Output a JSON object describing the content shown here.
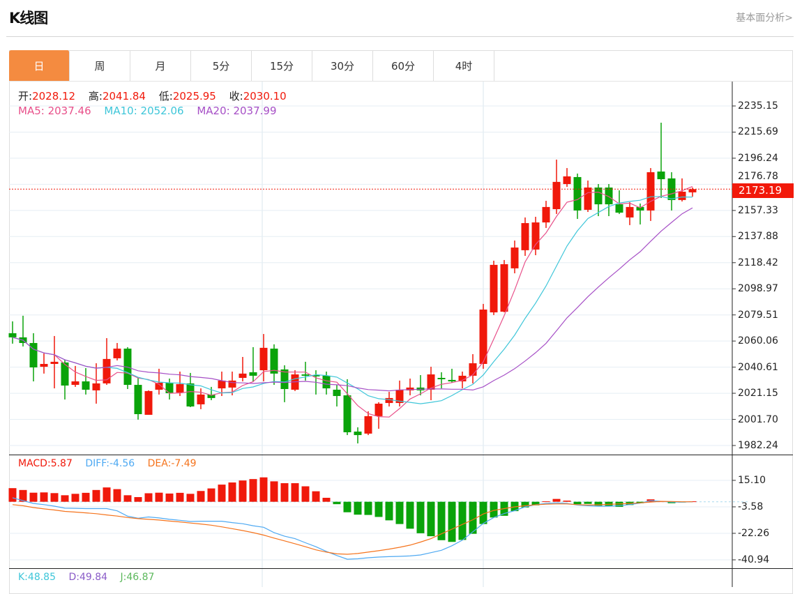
{
  "header": {
    "title": "K线图",
    "fundamental_link": "基本面分析>"
  },
  "tabs": [
    {
      "label": "日",
      "active": true
    },
    {
      "label": "周"
    },
    {
      "label": "月"
    },
    {
      "label": "5分"
    },
    {
      "label": "15分"
    },
    {
      "label": "30分"
    },
    {
      "label": "60分"
    },
    {
      "label": "4时"
    }
  ],
  "info": {
    "open_label": "开:",
    "open": "2028.12",
    "high_label": "高:",
    "high": "2041.84",
    "low_label": "低:",
    "low": "2025.95",
    "close_label": "收:",
    "close": "2030.10",
    "ma5_label": "MA5:",
    "ma5": "2037.46",
    "ma10_label": "MA10:",
    "ma10": "2052.06",
    "ma20_label": "MA20:",
    "ma20": "2037.99"
  },
  "macd_info": {
    "macd_label": "MACD:",
    "macd": "5.87",
    "diff_label": "DIFF:",
    "diff": "-4.56",
    "dea_label": "DEA:",
    "dea": "-7.49"
  },
  "kdj_info": {
    "k_label": "K:",
    "k": "48.85",
    "d_label": "D:",
    "d": "49.84",
    "j_label": "J:",
    "j": "46.87"
  },
  "colors": {
    "up": "#f0190b",
    "down": "#0aa30a",
    "ma5": "#e8508a",
    "ma10": "#3ec6d9",
    "ma20": "#a64fc6",
    "diff": "#4ea9f2",
    "dea": "#f5731c",
    "active_tab": "#f48b40",
    "k": "#3ec6d9",
    "d": "#8a5cc8",
    "j": "#5cb85c"
  },
  "chart_data": [
    {
      "type": "candlestick",
      "price_ticks": [
        "2235.15",
        "2215.69",
        "2196.24",
        "2176.78",
        "2157.33",
        "2137.88",
        "2118.42",
        "2098.97",
        "2079.51",
        "2060.06",
        "2040.61",
        "2021.15",
        "2001.70",
        "1982.24"
      ],
      "last_price": "2173.19",
      "ohlc_fields": [
        "open",
        "high",
        "low",
        "close"
      ],
      "ohlc": [
        [
          2065.9,
          2074.7,
          2058.1,
          2062.8
        ],
        [
          2062.8,
          2078.9,
          2056.0,
          2058.6
        ],
        [
          2058.6,
          2065.9,
          2030.0,
          2040.4
        ],
        [
          2040.9,
          2050.8,
          2035.8,
          2043.0
        ],
        [
          2043.0,
          2063.8,
          2024.8,
          2044.6
        ],
        [
          2044.1,
          2046.1,
          2016.5,
          2026.9
        ],
        [
          2027.4,
          2041.5,
          2025.9,
          2030.0
        ],
        [
          2030.0,
          2039.9,
          2020.2,
          2023.8
        ],
        [
          2023.3,
          2043.5,
          2013.4,
          2028.5
        ],
        [
          2028.5,
          2062.2,
          2027.4,
          2046.7
        ],
        [
          2047.2,
          2058.6,
          2045.6,
          2054.4
        ],
        [
          2054.4,
          2055.5,
          2024.3,
          2027.4
        ],
        [
          2027.4,
          2032.6,
          2001.5,
          2005.6
        ],
        [
          2005.1,
          2023.3,
          2005.1,
          2022.8
        ],
        [
          2023.8,
          2039.4,
          2020.2,
          2029.0
        ],
        [
          2029.0,
          2032.1,
          2016.5,
          2021.2
        ],
        [
          2021.7,
          2037.3,
          2019.1,
          2028.0
        ],
        [
          2028.5,
          2036.3,
          2010.8,
          2011.3
        ],
        [
          2012.9,
          2024.8,
          2009.3,
          2020.2
        ],
        [
          2020.2,
          2025.9,
          2016.0,
          2017.6
        ],
        [
          2024.8,
          2037.3,
          2019.1,
          2030.6
        ],
        [
          2025.4,
          2037.3,
          2019.6,
          2030.6
        ],
        [
          2032.6,
          2048.2,
          2030.0,
          2035.8
        ],
        [
          2036.8,
          2055.5,
          2030.0,
          2034.2
        ],
        [
          2038.3,
          2065.3,
          2030.0,
          2055.0
        ],
        [
          2054.4,
          2057.6,
          2027.4,
          2035.8
        ],
        [
          2038.9,
          2042.0,
          2014.5,
          2024.3
        ],
        [
          2023.8,
          2038.3,
          2022.8,
          2035.2
        ],
        [
          2035.2,
          2044.6,
          2030.6,
          2034.2
        ],
        [
          2034.7,
          2038.3,
          2020.2,
          2033.7
        ],
        [
          2034.2,
          2037.3,
          2020.2,
          2024.8
        ],
        [
          2023.8,
          2027.4,
          2011.3,
          2019.1
        ],
        [
          2019.6,
          2031.6,
          1990.0,
          1992.1
        ],
        [
          1992.6,
          1995.8,
          1983.8,
          1990.0
        ],
        [
          1991.1,
          2007.7,
          1990.0,
          2004.1
        ],
        [
          2004.1,
          2014.5,
          1994.7,
          2013.4
        ],
        [
          2013.9,
          2022.2,
          2011.3,
          2017.6
        ],
        [
          2013.9,
          2030.6,
          2011.3,
          2023.8
        ],
        [
          2023.3,
          2032.1,
          2019.6,
          2025.4
        ],
        [
          2025.4,
          2034.7,
          2019.6,
          2023.3
        ],
        [
          2023.8,
          2040.9,
          2016.0,
          2035.2
        ],
        [
          2032.6,
          2036.8,
          2024.8,
          2031.6
        ],
        [
          2031.1,
          2039.4,
          2029.0,
          2030.0
        ],
        [
          2030.0,
          2037.3,
          2024.8,
          2034.2
        ],
        [
          2034.2,
          2050.3,
          2028.5,
          2043.5
        ],
        [
          2043.0,
          2087.7,
          2039.4,
          2083.5
        ],
        [
          2081.4,
          2119.9,
          2079.4,
          2116.8
        ],
        [
          2081.9,
          2120.4,
          2081.4,
          2117.3
        ],
        [
          2114.2,
          2134.9,
          2110.5,
          2129.7
        ],
        [
          2127.7,
          2152.1,
          2123.5,
          2147.9
        ],
        [
          2128.2,
          2152.6,
          2124.0,
          2148.4
        ],
        [
          2148.4,
          2164.5,
          2144.3,
          2159.9
        ],
        [
          2158.3,
          2195.2,
          2154.7,
          2178.6
        ],
        [
          2177.0,
          2188.9,
          2174.9,
          2182.7
        ],
        [
          2182.2,
          2184.8,
          2151.0,
          2157.3
        ],
        [
          2157.8,
          2179.6,
          2156.2,
          2174.4
        ],
        [
          2174.4,
          2177.0,
          2153.1,
          2161.9
        ],
        [
          2174.4,
          2177.0,
          2153.1,
          2161.9
        ],
        [
          2161.9,
          2172.3,
          2154.7,
          2155.7
        ],
        [
          2152.1,
          2163.5,
          2146.4,
          2159.9
        ],
        [
          2159.9,
          2162.5,
          2146.9,
          2157.3
        ],
        [
          2157.3,
          2188.9,
          2149.5,
          2185.8
        ],
        [
          2186.3,
          2222.7,
          2166.6,
          2180.6
        ],
        [
          2181.2,
          2185.8,
          2157.3,
          2165.1
        ],
        [
          2165.1,
          2181.2,
          2164.0,
          2171.3
        ],
        [
          2170.8,
          2174.4,
          2167.6,
          2173.19
        ]
      ],
      "moving_averages": [
        "MA5",
        "MA10",
        "MA20"
      ]
    },
    {
      "type": "macd",
      "ticks": [
        "15.10",
        "-3.58",
        "-22.26",
        "-40.94"
      ],
      "histogram": [
        9.6,
        8.3,
        6.4,
        6.6,
        6.1,
        4.6,
        5.6,
        6.3,
        8.3,
        10.1,
        8.9,
        4.6,
        3.3,
        6.0,
        6.4,
        5.8,
        6.3,
        5.6,
        7.6,
        9.4,
        12.1,
        13.6,
        15.0,
        16.0,
        17.2,
        14.4,
        13.1,
        13.1,
        10.9,
        7.4,
        2.8,
        -1.7,
        -7.4,
        -9.1,
        -9.3,
        -10.7,
        -13.1,
        -15.7,
        -19.0,
        -22.2,
        -24.3,
        -27.1,
        -28.3,
        -26.9,
        -22.6,
        -15.7,
        -11.1,
        -9.9,
        -6.6,
        -4.0,
        -2.5,
        0.3,
        2.0,
        0.8,
        -1.7,
        -1.5,
        -2.8,
        -3.1,
        -3.6,
        -2.3,
        -1.0,
        1.7,
        0.3,
        -1.0,
        -0.3,
        0.3
      ],
      "diff": [
        2.8,
        0.8,
        -1.2,
        -2.0,
        -3.1,
        -4.5,
        -4.6,
        -4.8,
        -4.8,
        -4.8,
        -6.4,
        -10.2,
        -11.6,
        -10.7,
        -11.4,
        -12.4,
        -13.1,
        -13.9,
        -13.7,
        -13.7,
        -13.7,
        -14.7,
        -15.5,
        -16.9,
        -18.0,
        -21.8,
        -24.3,
        -26.0,
        -28.9,
        -31.7,
        -35.0,
        -37.9,
        -40.5,
        -40.2,
        -39.5,
        -39.0,
        -38.7,
        -38.5,
        -38.2,
        -37.5,
        -35.9,
        -34.2,
        -31.0,
        -27.1,
        -21.2,
        -15.3,
        -11.1,
        -8.3,
        -6.3,
        -3.6,
        -2.0,
        -1.2,
        -0.8,
        -1.2,
        -2.3,
        -2.8,
        -3.1,
        -3.1,
        -2.8,
        -2.0,
        -1.0,
        0.8,
        0.3,
        -0.2,
        -0.2,
        0.0
      ],
      "dea": [
        -2.0,
        -2.8,
        -4.1,
        -5.0,
        -5.8,
        -6.8,
        -7.3,
        -7.8,
        -8.4,
        -9.3,
        -10.1,
        -11.1,
        -11.9,
        -12.4,
        -12.9,
        -13.6,
        -14.2,
        -15.0,
        -15.7,
        -16.5,
        -17.7,
        -19.0,
        -20.3,
        -21.8,
        -23.5,
        -25.6,
        -27.6,
        -29.6,
        -31.7,
        -33.9,
        -35.5,
        -36.7,
        -37.0,
        -36.5,
        -35.5,
        -34.5,
        -33.4,
        -32.1,
        -30.6,
        -28.4,
        -26.0,
        -22.6,
        -19.3,
        -16.0,
        -12.7,
        -8.6,
        -6.1,
        -4.8,
        -3.6,
        -2.8,
        -2.1,
        -1.7,
        -1.5,
        -1.5,
        -2.0,
        -2.3,
        -2.1,
        -1.8,
        -1.5,
        -1.2,
        -0.8,
        -0.2,
        0.3,
        0.2,
        0.0,
        0.0
      ]
    }
  ]
}
